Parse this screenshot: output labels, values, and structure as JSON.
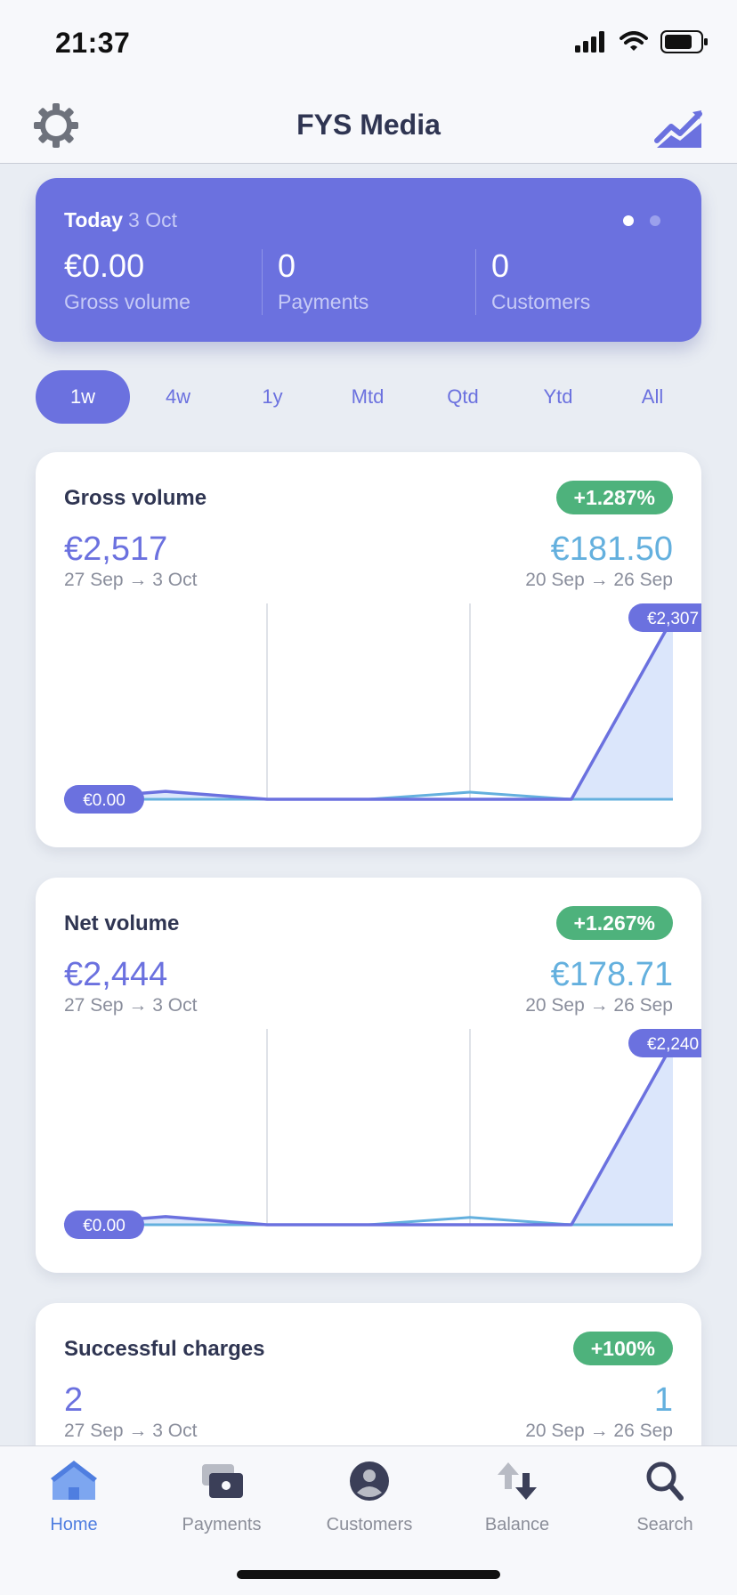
{
  "status_bar": {
    "time": "21:37"
  },
  "nav": {
    "title": "FYS Media",
    "left_icon": "gear-icon",
    "right_icon": "trend-chart-icon"
  },
  "summary": {
    "today_label": "Today",
    "date": "3 Oct",
    "metrics": [
      {
        "value": "€0.00",
        "label": "Gross volume"
      },
      {
        "value": "0",
        "label": "Payments"
      },
      {
        "value": "0",
        "label": "Customers"
      }
    ],
    "page_count": 2,
    "active_page": 0
  },
  "tabs": [
    "1w",
    "4w",
    "1y",
    "Mtd",
    "Qtd",
    "Ytd",
    "All"
  ],
  "active_tab": "1w",
  "colors": {
    "accent": "#6b71df",
    "previous": "#64b0de",
    "positive": "#4eb27c",
    "active_nav": "#4f7ee0"
  },
  "cards": [
    {
      "title": "Gross volume",
      "change": "+1.287%",
      "current_value": "€2,517",
      "current_range": "27 Sep → 3 Oct",
      "previous_value": "€181.50",
      "previous_range": "20 Sep → 26 Sep",
      "chart_data": {
        "type": "area",
        "series": [
          {
            "values": [
              0,
              100,
              0,
              0,
              0,
              0,
              2307
            ]
          },
          {
            "values": [
              0,
              0,
              0,
              0,
              90,
              0,
              0
            ]
          }
        ],
        "annotations": {
          "min_label": "€0.00",
          "max_label": "€2,307"
        }
      }
    },
    {
      "title": "Net volume",
      "change": "+1.267%",
      "current_value": "€2,444",
      "current_range": "27 Sep → 3 Oct",
      "previous_value": "€178.71",
      "previous_range": "20 Sep → 26 Sep",
      "chart_data": {
        "type": "area",
        "series": [
          {
            "values": [
              0,
              100,
              0,
              0,
              0,
              0,
              2240
            ]
          },
          {
            "values": [
              0,
              0,
              0,
              0,
              90,
              0,
              0
            ]
          }
        ],
        "annotations": {
          "min_label": "€0.00",
          "max_label": "€2,240"
        }
      }
    },
    {
      "title": "Successful charges",
      "change": "+100%",
      "current_value": "2",
      "current_range": "27 Sep → 3 Oct",
      "previous_value": "1",
      "previous_range": "20 Sep → 26 Sep"
    }
  ],
  "tab_bar": [
    {
      "label": "Home",
      "icon": "home-icon",
      "active": true
    },
    {
      "label": "Payments",
      "icon": "payments-icon",
      "active": false
    },
    {
      "label": "Customers",
      "icon": "customer-icon",
      "active": false
    },
    {
      "label": "Balance",
      "icon": "balance-arrows-icon",
      "active": false
    },
    {
      "label": "Search",
      "icon": "search-icon",
      "active": false
    }
  ]
}
